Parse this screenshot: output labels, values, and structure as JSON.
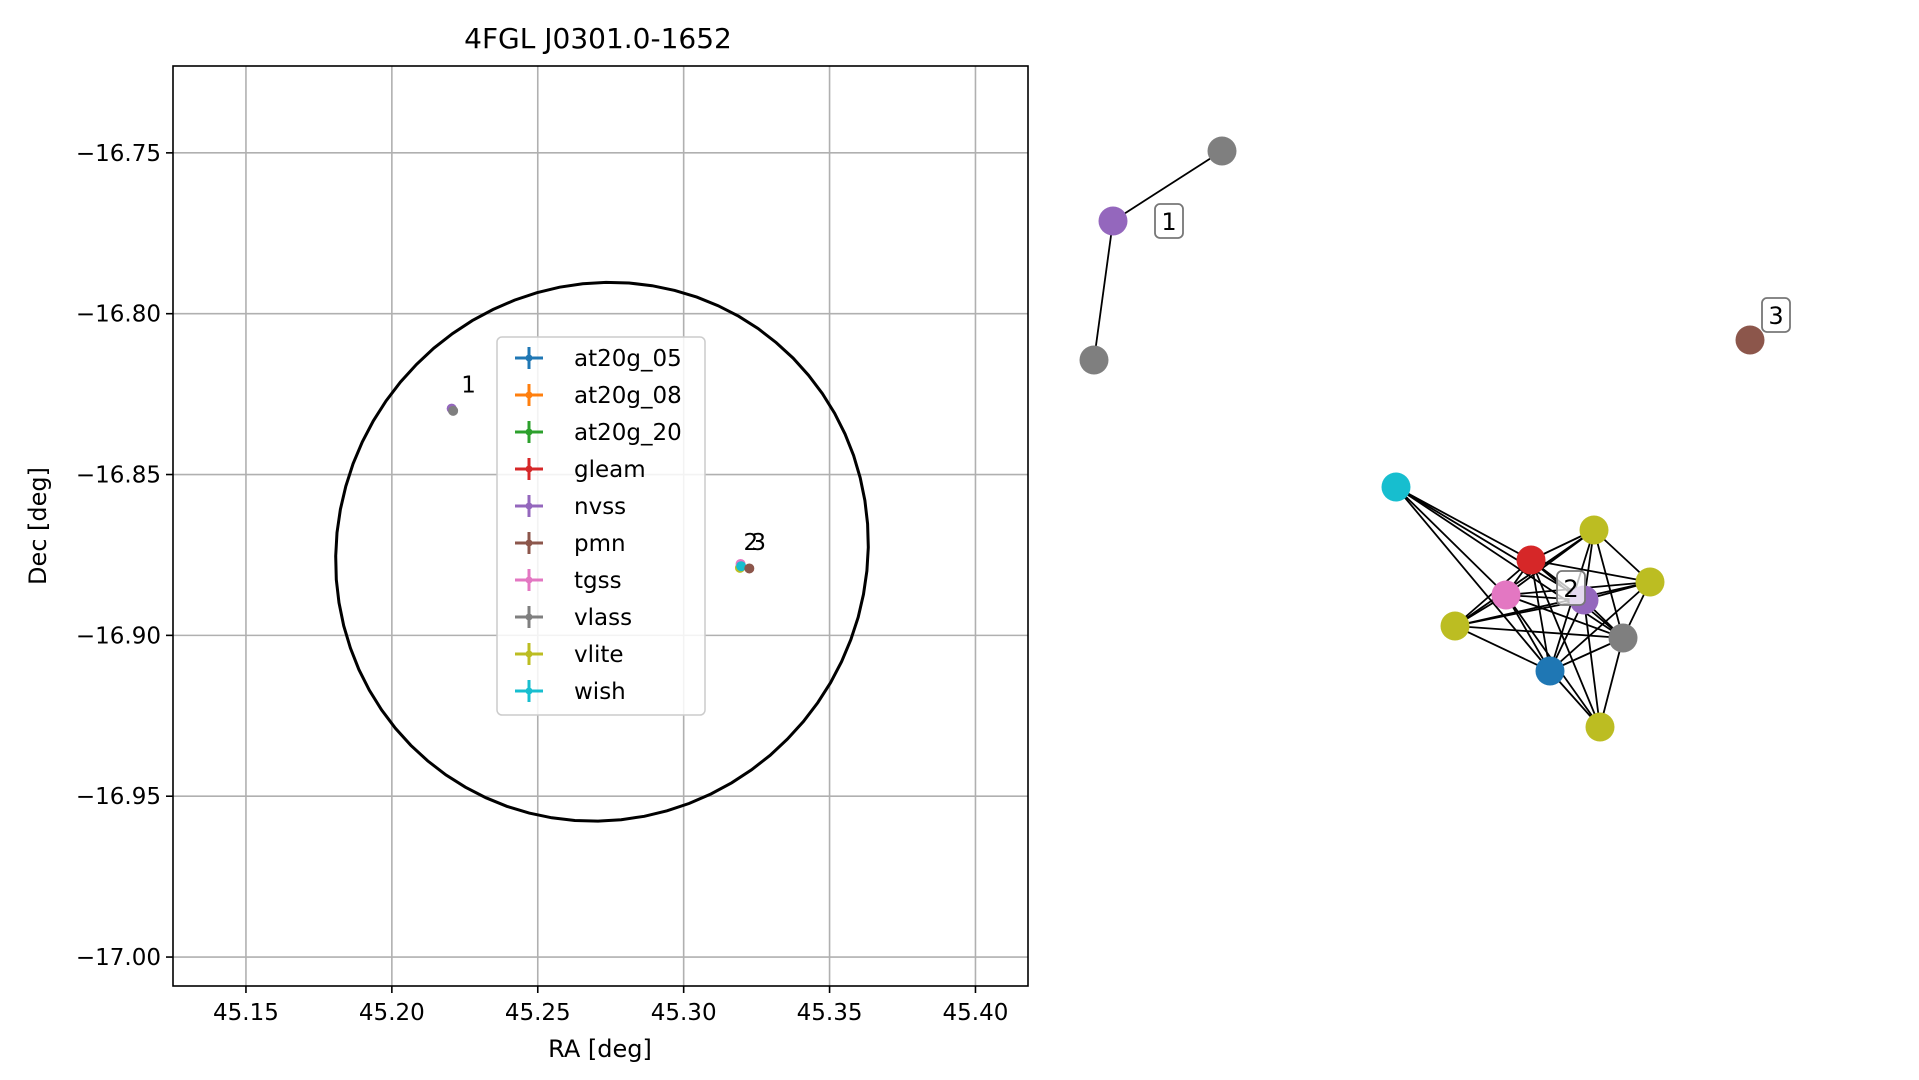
{
  "chart_data": [
    {
      "type": "scatter",
      "title": "4FGL J0301.0-1652",
      "xlabel": "RA [deg]",
      "ylabel": "Dec [deg]",
      "xlim": [
        45.125,
        45.418
      ],
      "ylim": [
        -17.009,
        -16.723
      ],
      "x_ticks": [
        45.15,
        45.2,
        45.25,
        45.3,
        45.35,
        45.4
      ],
      "x_tick_labels": [
        "45.15",
        "45.20",
        "45.25",
        "45.30",
        "45.35",
        "45.40"
      ],
      "y_ticks": [
        -16.75,
        -16.8,
        -16.85,
        -16.9,
        -16.95,
        -17.0
      ],
      "y_tick_labels": [
        "−16.75",
        "−16.80",
        "−16.85",
        "−16.90",
        "−16.95",
        "−17.00"
      ],
      "grid": true,
      "legend_position": "center",
      "legend": [
        {
          "name": "at20g_05",
          "color": "#1f77b4"
        },
        {
          "name": "at20g_08",
          "color": "#ff7f0e"
        },
        {
          "name": "at20g_20",
          "color": "#2ca02c"
        },
        {
          "name": "gleam",
          "color": "#d62728"
        },
        {
          "name": "nvss",
          "color": "#9467bd"
        },
        {
          "name": "pmn",
          "color": "#8c564b"
        },
        {
          "name": "tgss",
          "color": "#e377c2"
        },
        {
          "name": "vlass",
          "color": "#7f7f7f"
        },
        {
          "name": "vlite",
          "color": "#bcbd22"
        },
        {
          "name": "wish",
          "color": "#17becf"
        }
      ],
      "ellipse": {
        "center": [
          45.272,
          -16.874
        ],
        "semi_axis_ra": 0.0915,
        "semi_axis_dec": 0.0835,
        "tilt_deg": 10
      },
      "points": [
        {
          "label": "1",
          "ra": 45.2205,
          "dec": -16.8295,
          "color": "#9467bd"
        },
        {
          "label": "1",
          "ra": 45.221,
          "dec": -16.8302,
          "color": "#7f7f7f"
        },
        {
          "label": "2",
          "ra": 45.3193,
          "dec": -16.879,
          "color": "#bcbd22"
        },
        {
          "label": "2",
          "ra": 45.3195,
          "dec": -16.8778,
          "color": "#e377c2"
        },
        {
          "label": "2",
          "ra": 45.3197,
          "dec": -16.8785,
          "color": "#17becf"
        },
        {
          "label": "3",
          "ra": 45.3225,
          "dec": -16.8792,
          "color": "#8c564b"
        }
      ],
      "group_labels": [
        {
          "text": "1",
          "ra": 45.2238,
          "dec": -16.8245
        },
        {
          "text": "2",
          "ra": 45.3205,
          "dec": -16.8735
        },
        {
          "text": "3",
          "ra": 45.3232,
          "dec": -16.8735
        }
      ]
    },
    {
      "type": "network",
      "nodes": [
        {
          "id": "a1",
          "color": "#9467bd"
        },
        {
          "id": "a2",
          "color": "#7f7f7f"
        },
        {
          "id": "a3",
          "color": "#7f7f7f"
        },
        {
          "id": "b1",
          "color": "#8c564b"
        },
        {
          "id": "c_wish",
          "color": "#17becf"
        },
        {
          "id": "c_vlite1",
          "color": "#bcbd22"
        },
        {
          "id": "c_gleam",
          "color": "#d62728"
        },
        {
          "id": "c_vlite2",
          "color": "#bcbd22"
        },
        {
          "id": "c_tgss",
          "color": "#e377c2"
        },
        {
          "id": "c_nvss",
          "color": "#9467bd"
        },
        {
          "id": "c_vlite3",
          "color": "#bcbd22"
        },
        {
          "id": "c_vlass",
          "color": "#7f7f7f"
        },
        {
          "id": "c_at20g",
          "color": "#1f77b4"
        },
        {
          "id": "c_vlite4",
          "color": "#bcbd22"
        }
      ],
      "edges": [
        [
          "a1",
          "a2"
        ],
        [
          "a1",
          "a3"
        ],
        [
          "c_wish",
          "c_gleam"
        ],
        [
          "c_wish",
          "c_tgss"
        ],
        [
          "c_wish",
          "c_nvss"
        ],
        [
          "c_wish",
          "c_vlass"
        ],
        [
          "c_wish",
          "c_at20g"
        ],
        [
          "c_vlite1",
          "c_gleam"
        ],
        [
          "c_vlite1",
          "c_tgss"
        ],
        [
          "c_vlite1",
          "c_vlite2"
        ],
        [
          "c_vlite1",
          "c_vlite3"
        ],
        [
          "c_vlite1",
          "c_nvss"
        ],
        [
          "c_vlite1",
          "c_vlass"
        ],
        [
          "c_vlite1",
          "c_at20g"
        ],
        [
          "c_gleam",
          "c_vlite2"
        ],
        [
          "c_gleam",
          "c_tgss"
        ],
        [
          "c_gleam",
          "c_nvss"
        ],
        [
          "c_gleam",
          "c_vlite3"
        ],
        [
          "c_gleam",
          "c_vlass"
        ],
        [
          "c_gleam",
          "c_at20g"
        ],
        [
          "c_gleam",
          "c_vlite4"
        ],
        [
          "c_vlite2",
          "c_tgss"
        ],
        [
          "c_vlite2",
          "c_nvss"
        ],
        [
          "c_vlite2",
          "c_vlite3"
        ],
        [
          "c_vlite2",
          "c_vlass"
        ],
        [
          "c_vlite2",
          "c_at20g"
        ],
        [
          "c_tgss",
          "c_nvss"
        ],
        [
          "c_tgss",
          "c_vlite3"
        ],
        [
          "c_tgss",
          "c_vlass"
        ],
        [
          "c_tgss",
          "c_at20g"
        ],
        [
          "c_tgss",
          "c_vlite4"
        ],
        [
          "c_nvss",
          "c_vlite3"
        ],
        [
          "c_nvss",
          "c_vlass"
        ],
        [
          "c_nvss",
          "c_at20g"
        ],
        [
          "c_nvss",
          "c_vlite4"
        ],
        [
          "c_vlite3",
          "c_vlass"
        ],
        [
          "c_vlite3",
          "c_at20g"
        ],
        [
          "c_vlass",
          "c_at20g"
        ],
        [
          "c_vlass",
          "c_vlite4"
        ],
        [
          "c_at20g",
          "c_vlite4"
        ]
      ],
      "group_labels": [
        {
          "text": "1",
          "near": "a1"
        },
        {
          "text": "2",
          "near": "c_nvss"
        },
        {
          "text": "3",
          "near": "b1"
        }
      ]
    }
  ]
}
